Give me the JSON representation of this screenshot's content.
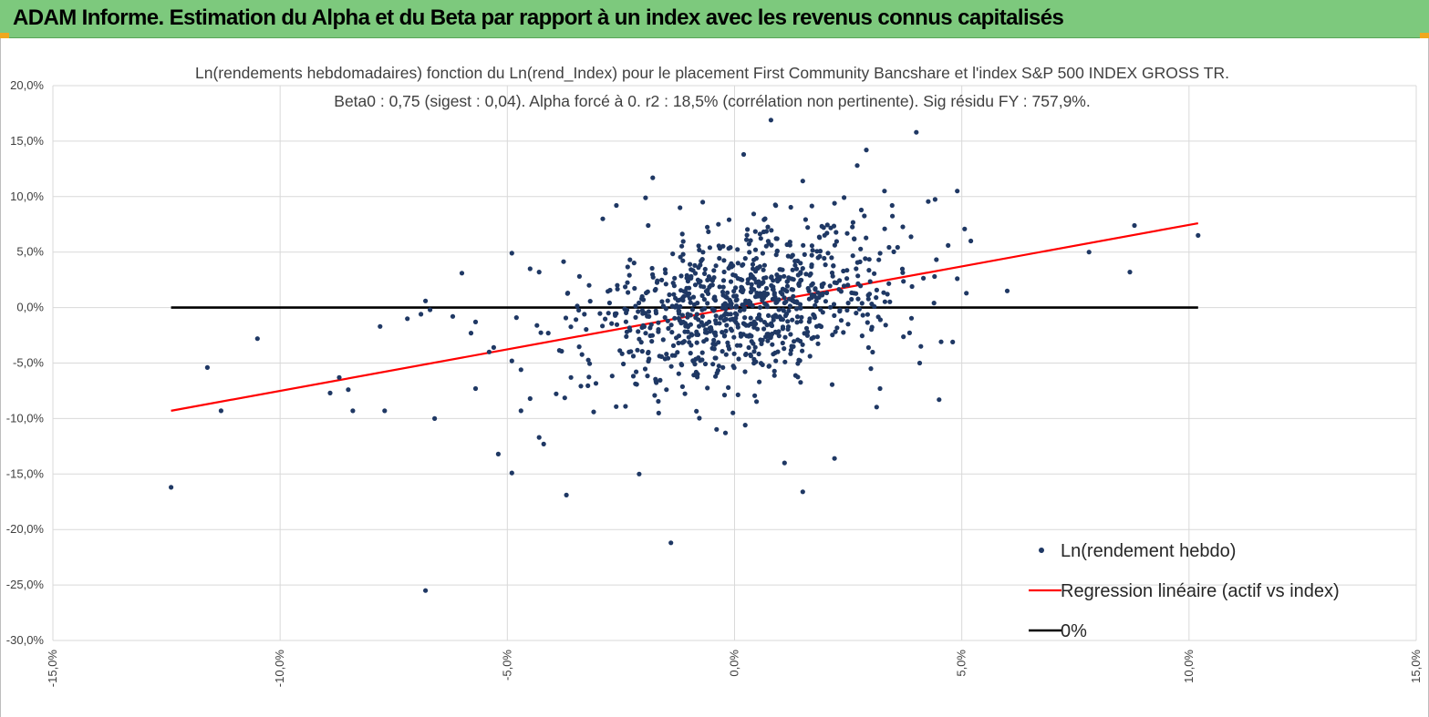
{
  "header": {
    "title": "ADAM Informe. Estimation du Alpha et du Beta par rapport à un index avec les revenus connus capitalisés",
    "background": "#7dc97d"
  },
  "chart_data": {
    "type": "scatter",
    "title_line1": "Ln(rendements hebdomadaires) fonction du Ln(rend_Index) pour le placement First Community Bancshare et l'index S&P 500 INDEX GROSS TR.",
    "title_line2": "Beta0 : 0,75 (sigest : 0,04). Alpha forcé à 0. r2 : 18,5% (corrélation non pertinente). Sig résidu FY : 757,9%.",
    "xlim": [
      -15,
      15
    ],
    "ylim": [
      -30,
      20
    ],
    "x_ticks": [
      {
        "value": -15,
        "label": "-15,0%"
      },
      {
        "value": -10,
        "label": "-10,0%"
      },
      {
        "value": -5,
        "label": "-5,0%"
      },
      {
        "value": 0,
        "label": "0,0%"
      },
      {
        "value": 5,
        "label": "5,0%"
      },
      {
        "value": 10,
        "label": "10,0%"
      },
      {
        "value": 15,
        "label": "15,0%"
      }
    ],
    "y_ticks": [
      {
        "value": 20,
        "label": "20,0%"
      },
      {
        "value": 15,
        "label": "15,0%"
      },
      {
        "value": 10,
        "label": "10,0%"
      },
      {
        "value": 5,
        "label": "5,0%"
      },
      {
        "value": 0,
        "label": "0,0%"
      },
      {
        "value": -5,
        "label": "-5,0%"
      },
      {
        "value": -10,
        "label": "-10,0%"
      },
      {
        "value": -15,
        "label": "-15,0%"
      },
      {
        "value": -20,
        "label": "-20,0%"
      },
      {
        "value": -25,
        "label": "-25,0%"
      },
      {
        "value": -30,
        "label": "-30,0%"
      }
    ],
    "series": [
      {
        "name": "Ln(rendement hebdo)",
        "kind": "scatter",
        "color": "#1f3864",
        "cluster": {
          "count": 900,
          "seed": 17,
          "x_mean": 0.2,
          "x_sd": 1.7,
          "slope": 0.75,
          "resid_sd": 3.4
        },
        "points": [
          [
            -12.4,
            -16.2
          ],
          [
            -11.6,
            -5.4
          ],
          [
            -11.3,
            -9.3
          ],
          [
            -10.5,
            -2.8
          ],
          [
            -8.9,
            -7.7
          ],
          [
            -8.7,
            -6.3
          ],
          [
            -8.5,
            -7.4
          ],
          [
            -8.4,
            -9.3
          ],
          [
            -7.8,
            -1.7
          ],
          [
            -7.7,
            -9.3
          ],
          [
            -7.2,
            -1.0
          ],
          [
            -6.9,
            -0.6
          ],
          [
            -6.8,
            0.6
          ],
          [
            -6.7,
            -0.2
          ],
          [
            -6.8,
            -25.5
          ],
          [
            -6.6,
            -10.0
          ],
          [
            -6.2,
            -0.8
          ],
          [
            -6.0,
            3.1
          ],
          [
            -5.8,
            -2.3
          ],
          [
            -5.7,
            -1.3
          ],
          [
            -5.7,
            -7.3
          ],
          [
            -5.4,
            -4.0
          ],
          [
            -5.3,
            -3.6
          ],
          [
            -5.2,
            -13.2
          ],
          [
            -4.9,
            4.9
          ],
          [
            -4.9,
            -4.8
          ],
          [
            -4.8,
            -0.9
          ],
          [
            -4.9,
            -14.9
          ],
          [
            -4.7,
            -9.3
          ],
          [
            -4.7,
            -5.6
          ],
          [
            -4.5,
            3.5
          ],
          [
            -4.5,
            -8.2
          ],
          [
            -4.3,
            3.2
          ],
          [
            -4.3,
            -11.7
          ],
          [
            -4.2,
            -12.3
          ],
          [
            -4.1,
            -2.3
          ],
          [
            -3.7,
            -16.9
          ],
          [
            -3.6,
            -6.3
          ],
          [
            -3.1,
            -9.4
          ],
          [
            -2.9,
            8.0
          ],
          [
            -2.6,
            9.2
          ],
          [
            -2.4,
            -8.9
          ],
          [
            -2.1,
            -15.0
          ],
          [
            -1.8,
            11.7
          ],
          [
            -1.9,
            7.4
          ],
          [
            -1.5,
            -7.4
          ],
          [
            -1.4,
            -21.2
          ],
          [
            -1.2,
            9.0
          ],
          [
            -0.7,
            9.5
          ],
          [
            -0.2,
            -11.3
          ],
          [
            0.2,
            13.8
          ],
          [
            0.8,
            16.9
          ],
          [
            1.1,
            -14.0
          ],
          [
            1.5,
            -16.6
          ],
          [
            1.5,
            11.4
          ],
          [
            2.2,
            9.4
          ],
          [
            2.7,
            12.8
          ],
          [
            2.9,
            14.2
          ],
          [
            3.3,
            10.5
          ],
          [
            3.0,
            -5.5
          ],
          [
            3.2,
            -7.3
          ],
          [
            4.0,
            15.8
          ],
          [
            4.1,
            -3.5
          ],
          [
            4.4,
            2.8
          ],
          [
            4.5,
            -8.3
          ],
          [
            4.7,
            5.6
          ],
          [
            4.8,
            -3.1
          ],
          [
            4.9,
            10.5
          ],
          [
            4.9,
            2.6
          ],
          [
            5.1,
            1.3
          ],
          [
            5.2,
            6.0
          ],
          [
            6.0,
            1.5
          ],
          [
            7.8,
            5.0
          ],
          [
            8.7,
            3.2
          ],
          [
            8.8,
            7.4
          ],
          [
            10.2,
            6.5
          ],
          [
            2.2,
            -13.6
          ],
          [
            -3.2,
            2.0
          ]
        ]
      },
      {
        "name": "Regression linéaire (actif vs index)",
        "kind": "line",
        "color": "#ff0000",
        "x": [
          -12.4,
          10.2
        ],
        "y": [
          -9.3,
          7.6
        ]
      },
      {
        "name": "0%",
        "kind": "line",
        "color": "#000000",
        "x": [
          -12.4,
          10.2
        ],
        "y": [
          0,
          0
        ]
      }
    ],
    "legend": {
      "position": "bottom-right"
    }
  }
}
